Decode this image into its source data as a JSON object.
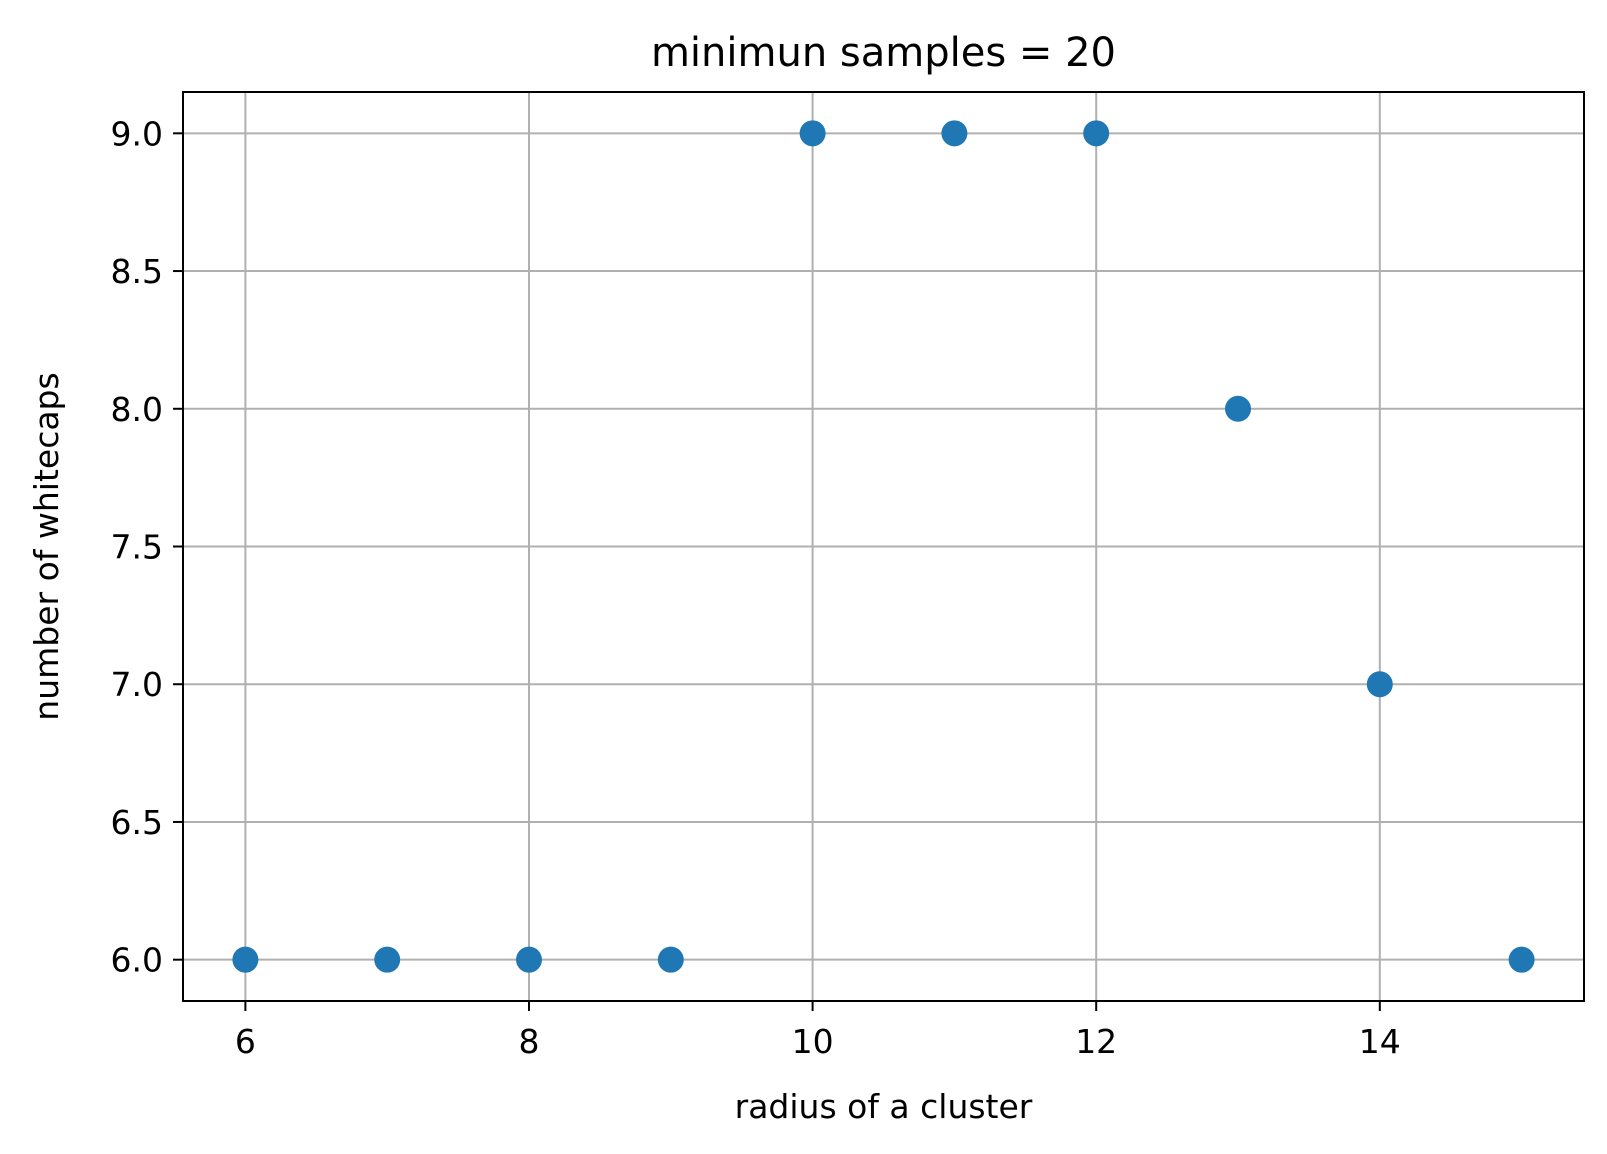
{
  "chart_data": {
    "type": "scatter",
    "title": "minimun samples = 20",
    "xlabel": "radius of a cluster",
    "ylabel": "number of whitecaps",
    "x": [
      6,
      7,
      8,
      9,
      10,
      11,
      12,
      13,
      14,
      15
    ],
    "y": [
      6,
      6,
      6,
      6,
      9,
      9,
      9,
      8,
      7,
      6
    ],
    "xlim": [
      5.56,
      15.44
    ],
    "ylim": [
      5.85,
      9.15
    ],
    "xticks": [
      6,
      8,
      10,
      12,
      14
    ],
    "xtick_labels": [
      "6",
      "8",
      "10",
      "12",
      "14"
    ],
    "yticks": [
      6.0,
      6.5,
      7.0,
      7.5,
      8.0,
      8.5,
      9.0
    ],
    "ytick_labels": [
      "6.0",
      "6.5",
      "7.0",
      "7.5",
      "8.0",
      "8.5",
      "9.0"
    ],
    "grid": true,
    "marker_color": "#1f77b4",
    "grid_color": "#b0b0b0"
  }
}
